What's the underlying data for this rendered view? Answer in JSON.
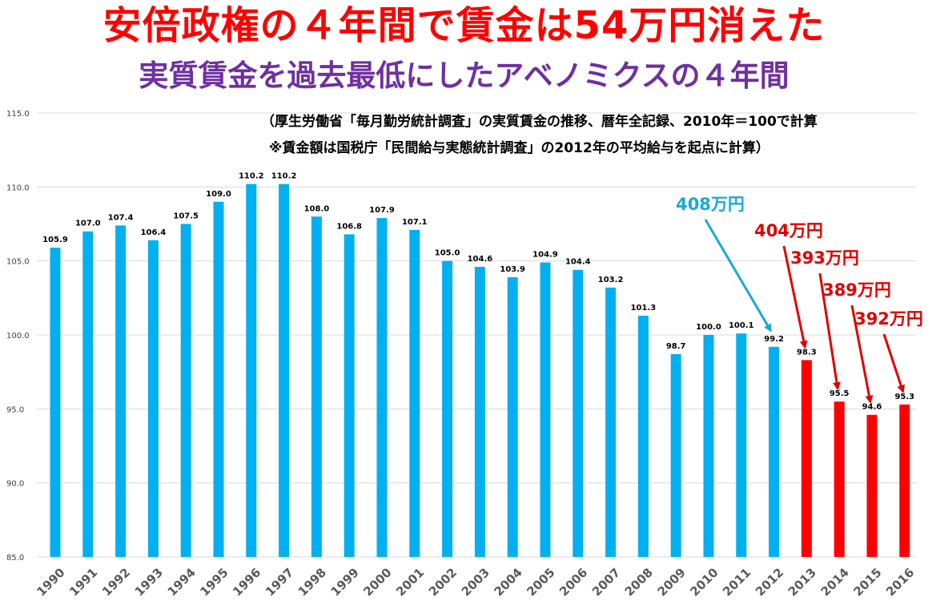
{
  "title": "安倍政権の４年間で賃金は54万円消えた",
  "subtitle": "実質賃金を過去最低にしたアベノミクスの４年間",
  "notes": [
    "（厚生労働省「毎月勤労統計調査」の実質賃金の推移、暦年全記録、2010年＝100で計算",
    "※賃金額は国税庁「民間給与実態統計調査」の2012年の平均給与を起点に計算）"
  ],
  "colors": {
    "title": "#ff0000",
    "subtitle": "#7030a0",
    "bar": "#00b0f0",
    "bar_highlight": "#ff0000",
    "arrow_blue": "#1aa9d6",
    "arrow_red": "#e00000",
    "grid": "#d9d9d9"
  },
  "chart_data": {
    "type": "bar",
    "categories": [
      "1990",
      "1991",
      "1992",
      "1993",
      "1994",
      "1995",
      "1996",
      "1997",
      "1998",
      "1999",
      "2000",
      "2001",
      "2002",
      "2003",
      "2004",
      "2005",
      "2006",
      "2007",
      "2008",
      "2009",
      "2010",
      "2011",
      "2012",
      "2013",
      "2014",
      "2015",
      "2016"
    ],
    "values": [
      105.9,
      107.0,
      107.4,
      106.4,
      107.5,
      109.0,
      110.2,
      110.2,
      108.0,
      106.8,
      107.9,
      107.1,
      105.0,
      104.6,
      103.9,
      104.9,
      104.4,
      103.2,
      101.3,
      98.7,
      100.0,
      100.1,
      99.2,
      98.3,
      95.5,
      94.6,
      95.3
    ],
    "value_labels": [
      "105.9",
      "107.0",
      "107.4",
      "106.4",
      "107.5",
      "109.0",
      "110.2",
      "110.2",
      "108.0",
      "106.8",
      "107.9",
      "107.1",
      "105.0",
      "104.6",
      "103.9",
      "104.9",
      "104.4",
      "103.2",
      "101.3",
      "98.7",
      "100.0",
      "100.1",
      "99.2",
      "98.3",
      "95.5",
      "94.6",
      "95.3"
    ],
    "ylim": [
      85.0,
      115.0
    ],
    "yticks": [
      "85.0",
      "90.0",
      "95.0",
      "100.0",
      "105.0",
      "110.0",
      "115.0"
    ],
    "highlight_from_year": "2013",
    "grid": true,
    "annotations": [
      {
        "text": "408万円",
        "year": "2012",
        "color": "blue"
      },
      {
        "text": "404万円",
        "year": "2013",
        "color": "red"
      },
      {
        "text": "393万円",
        "year": "2014",
        "color": "red"
      },
      {
        "text": "389万円",
        "year": "2015",
        "color": "red"
      },
      {
        "text": "392万円",
        "year": "2016",
        "color": "red"
      }
    ]
  }
}
